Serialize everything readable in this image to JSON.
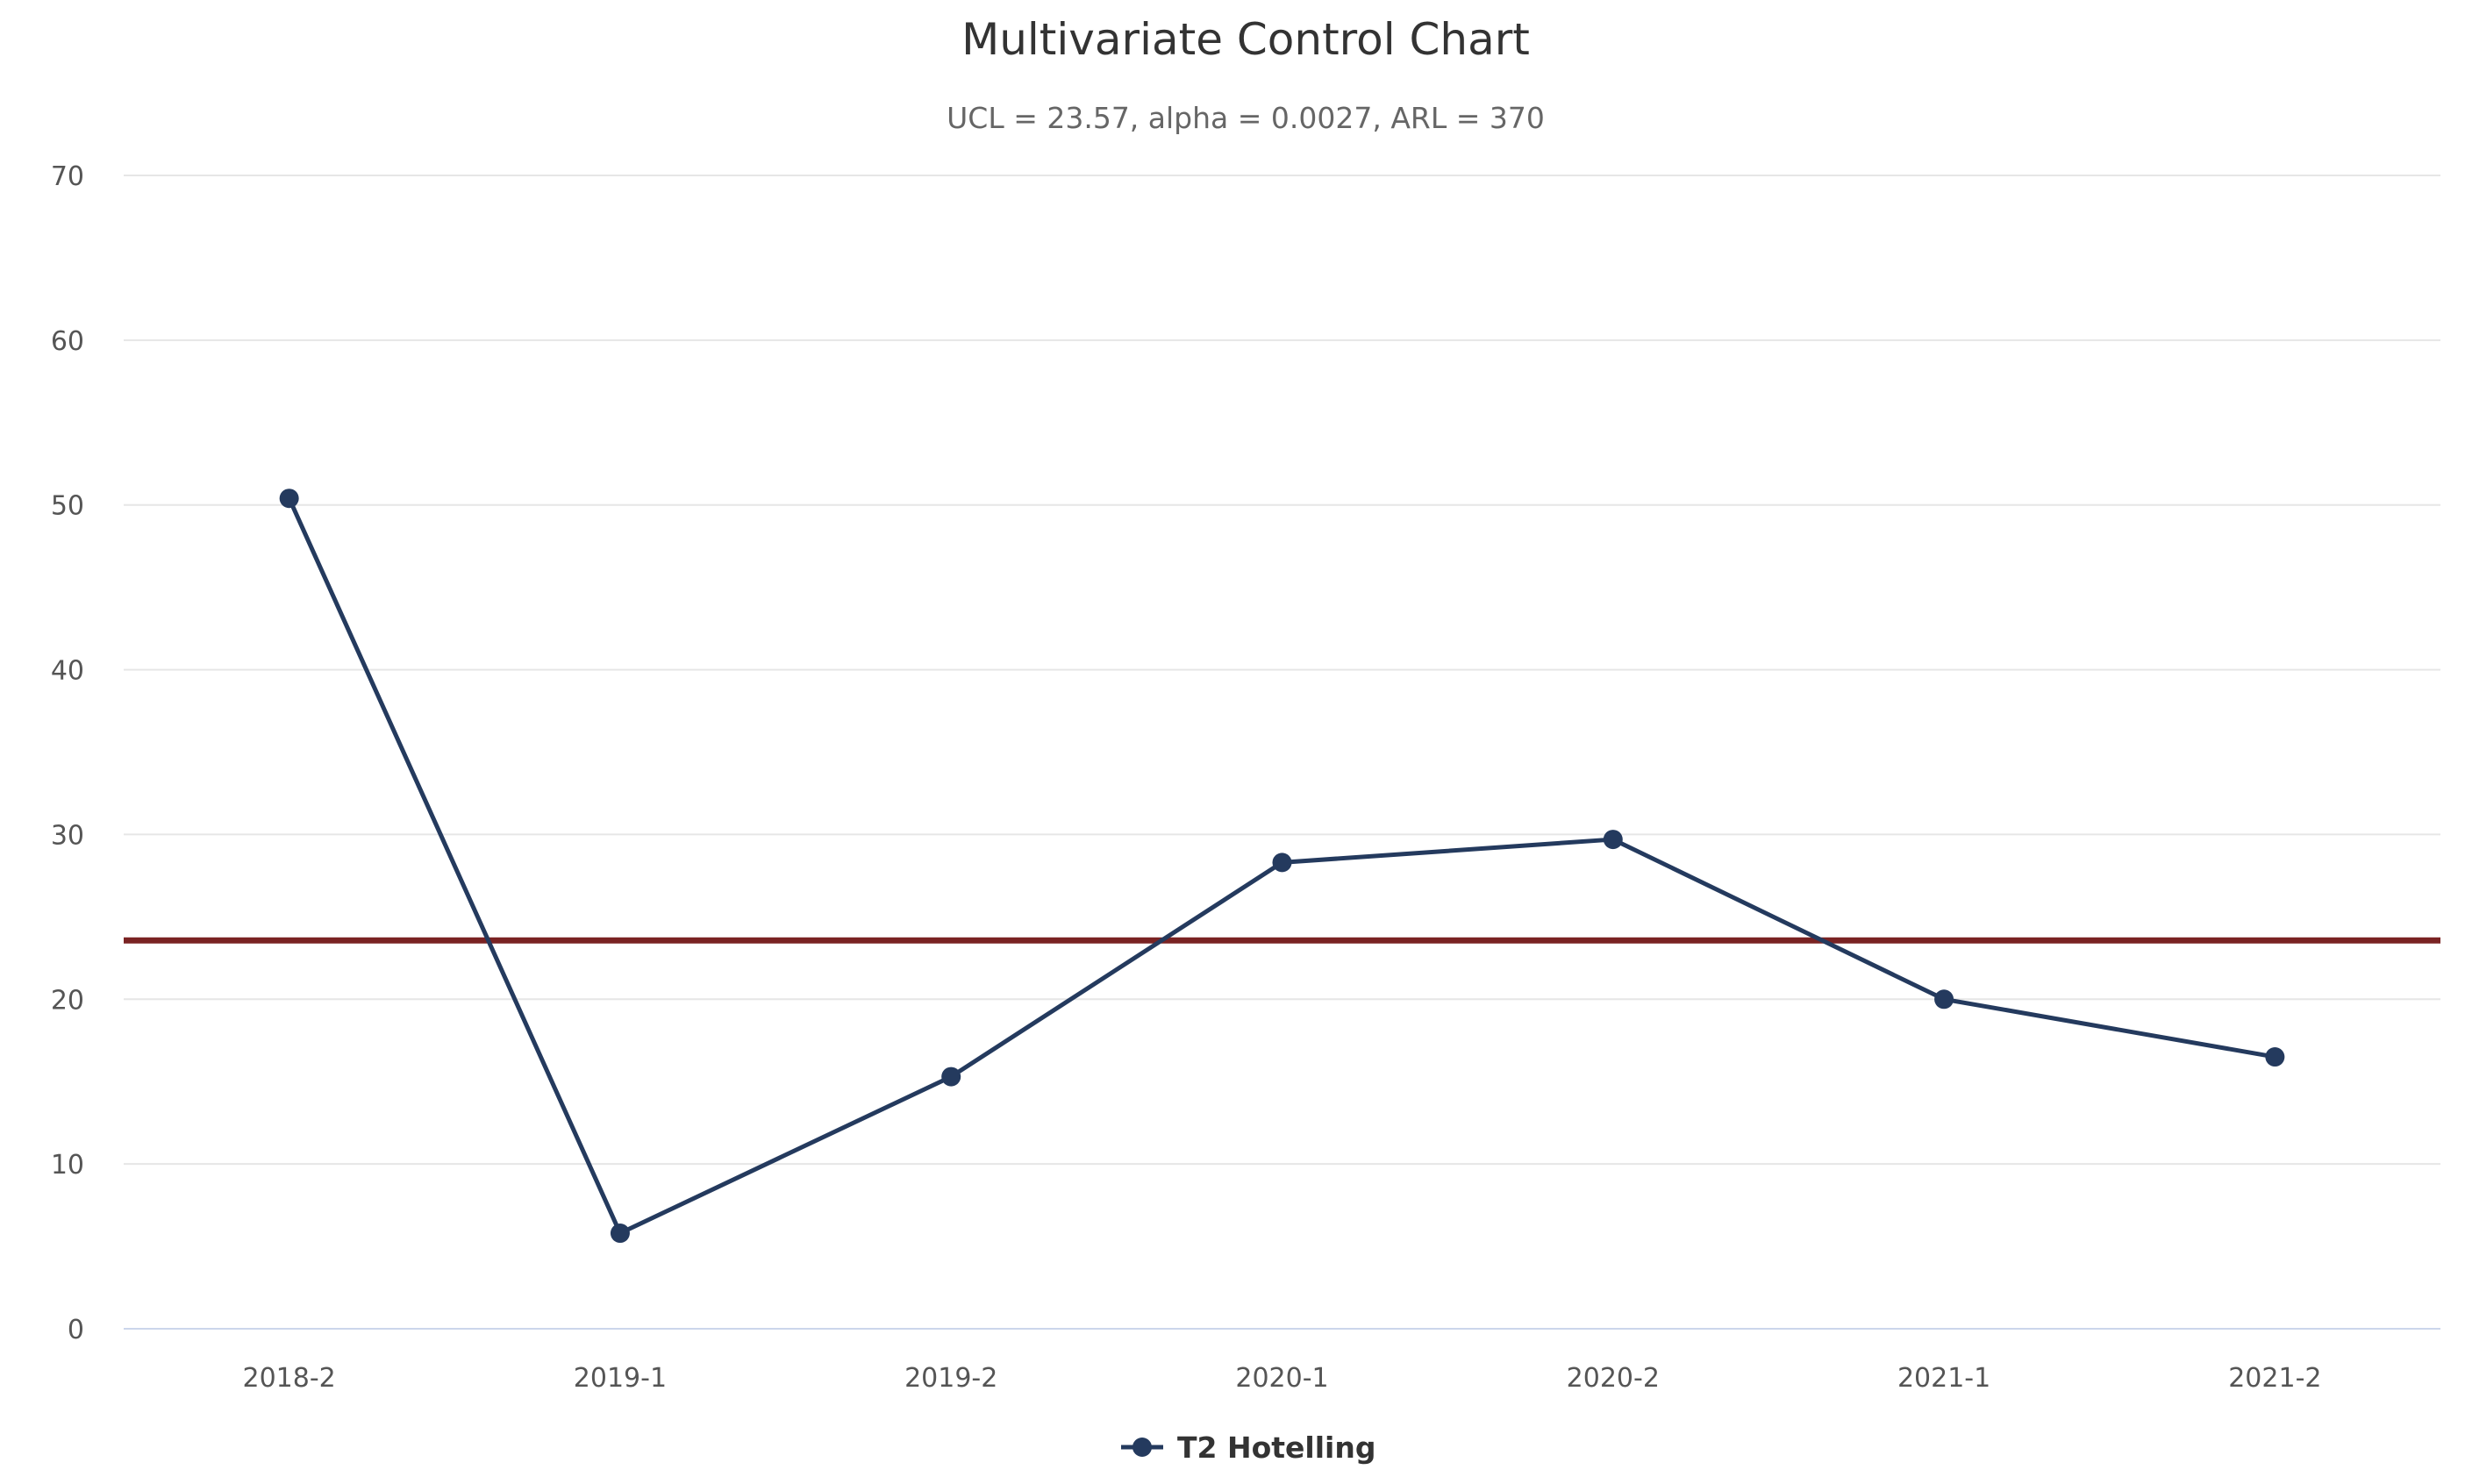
{
  "chart_data": {
    "type": "line",
    "title": "Multivariate Control Chart",
    "subtitle": "UCL = 23.57, alpha = 0.0027, ARL = 370",
    "xlabel": "",
    "ylabel": "",
    "categories": [
      "2018-2",
      "2019-1",
      "2019-2",
      "2020-1",
      "2020-2",
      "2021-1",
      "2021-2"
    ],
    "ylim": [
      0,
      70
    ],
    "yticks": [
      0,
      10,
      20,
      30,
      40,
      50,
      60,
      70
    ],
    "grid": true,
    "legend_position": "bottom-center",
    "series": [
      {
        "name": "T2 Hotelling",
        "color": "#243a5e",
        "values": [
          50.4,
          5.8,
          15.3,
          28.3,
          29.7,
          20.0,
          16.5
        ]
      }
    ],
    "reference_lines": [
      {
        "value": 23.57,
        "color": "#7a2323"
      }
    ]
  }
}
